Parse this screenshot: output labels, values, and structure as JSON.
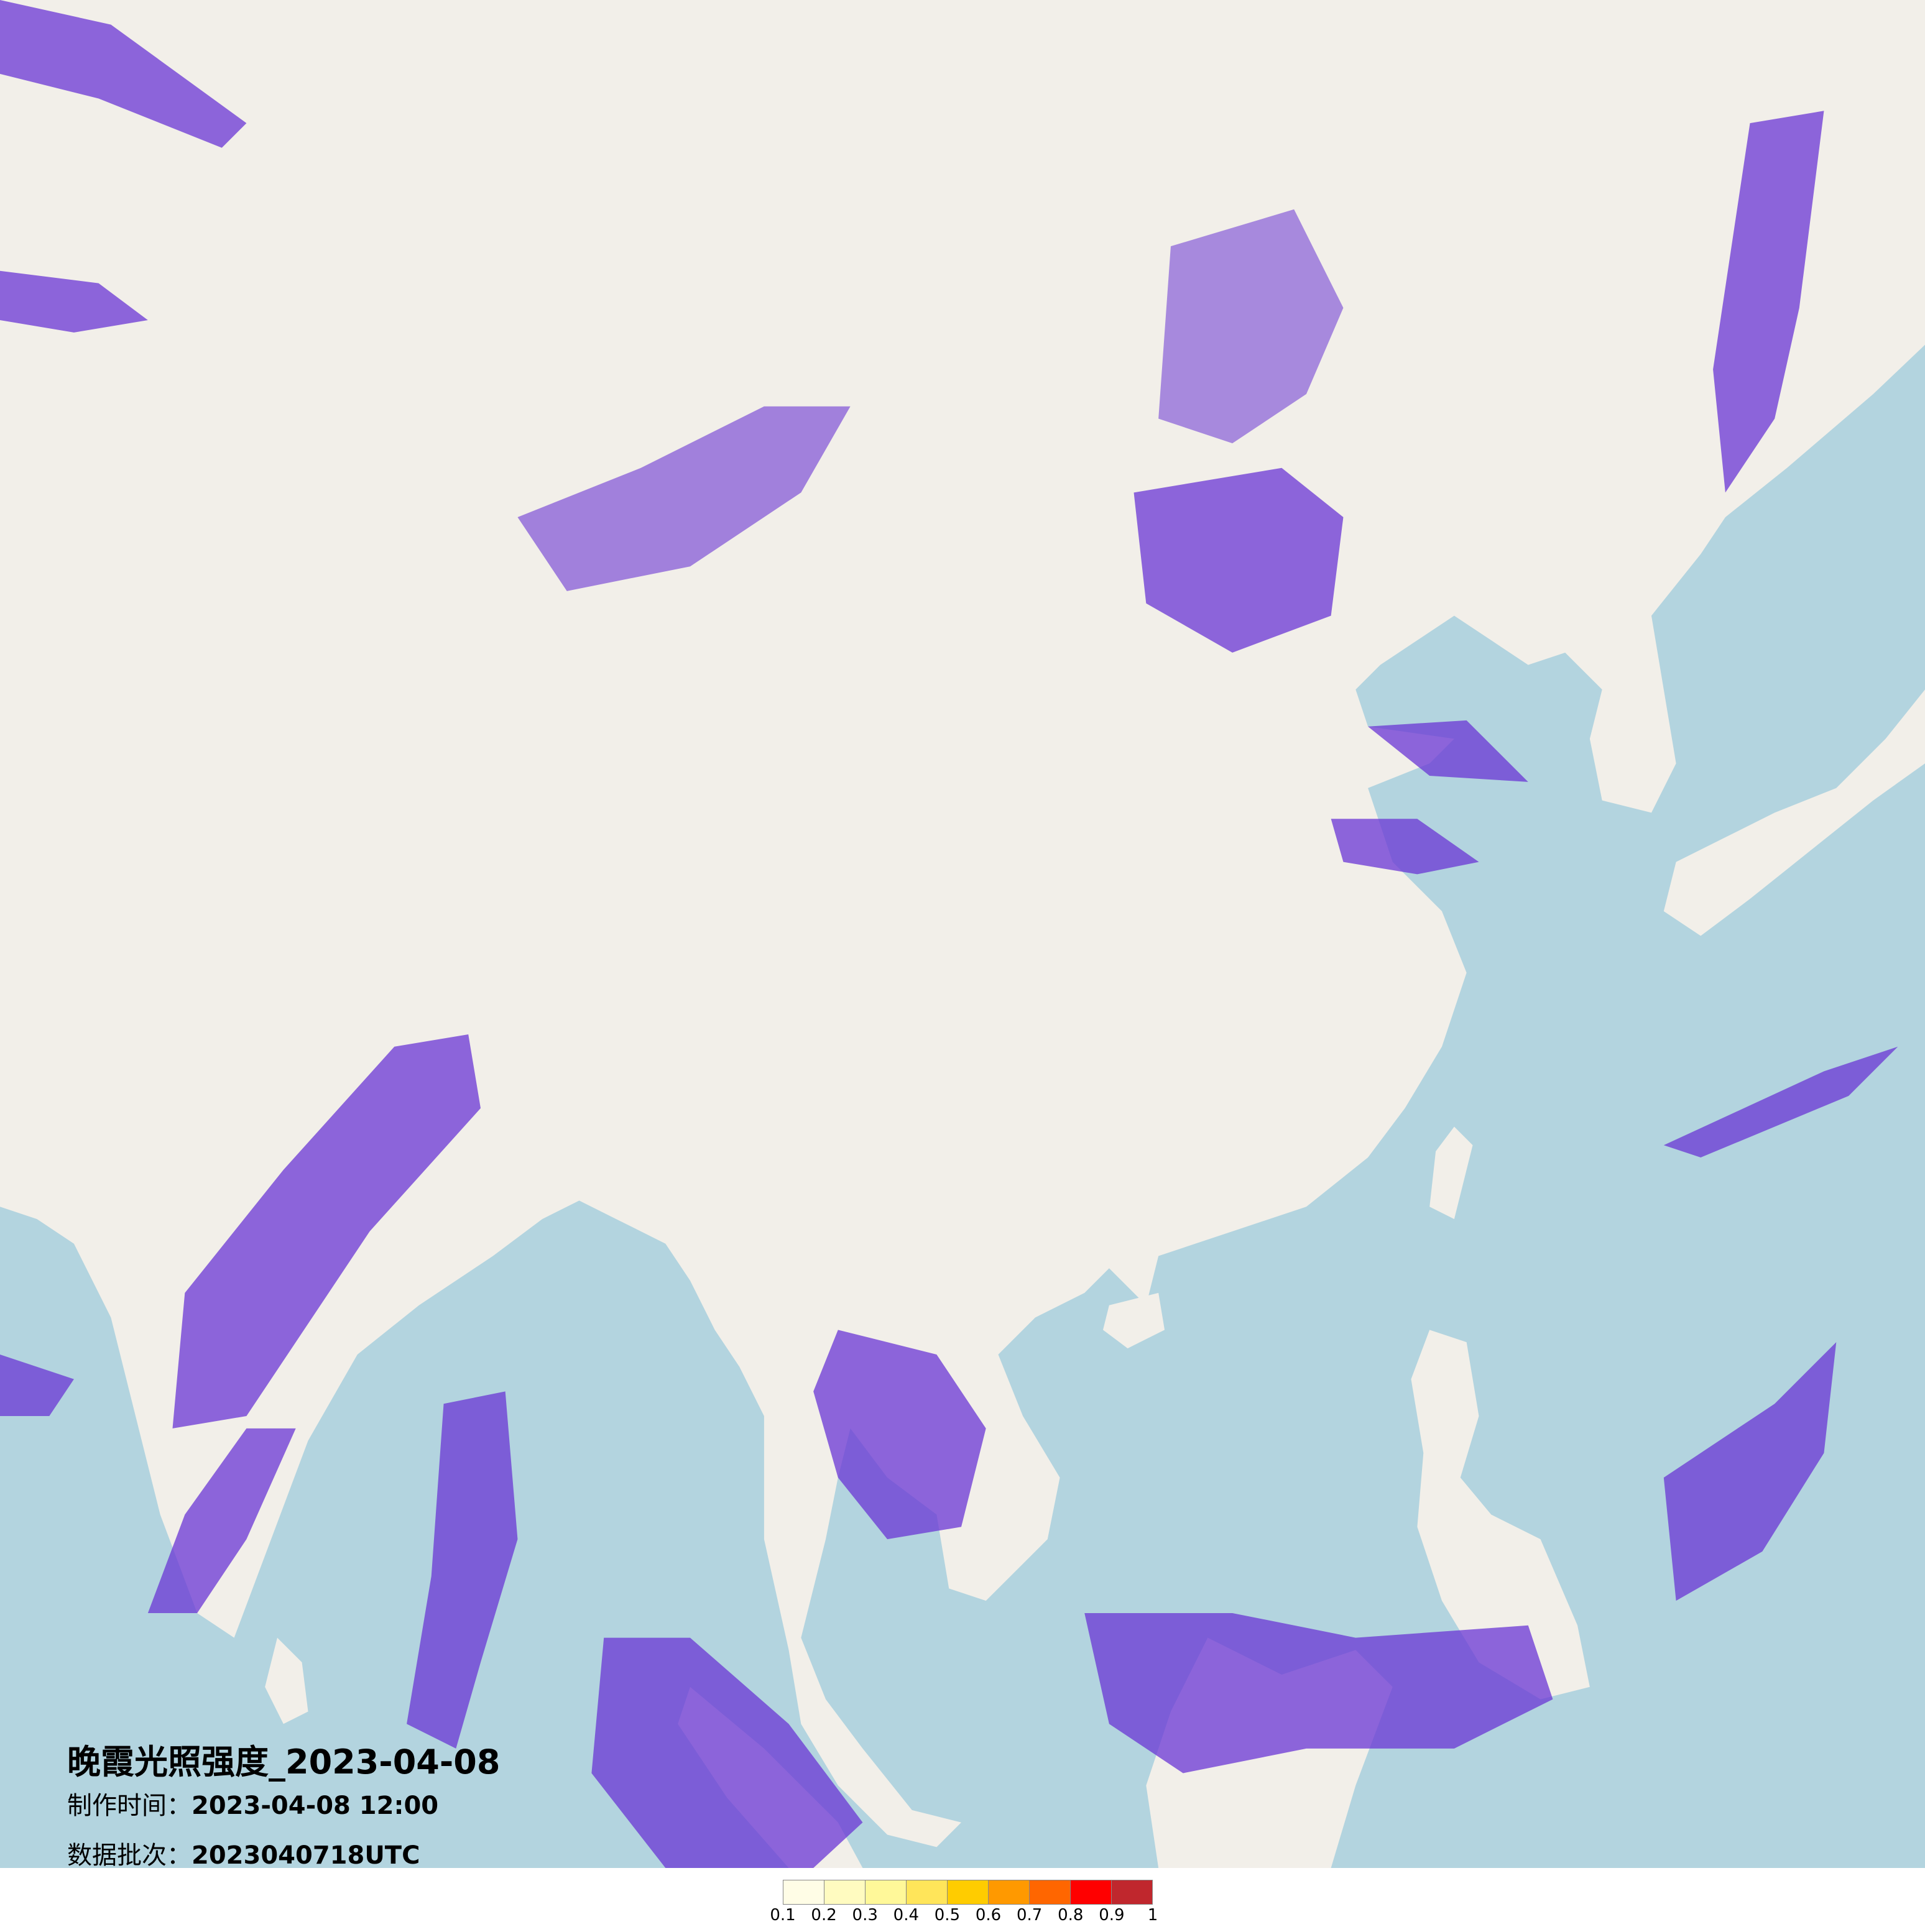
{
  "title": {
    "main": "晚霞光照强度_2023-04-08",
    "made_label": "制作时间：",
    "made_value": "2023-04-08 12:00",
    "batch_label": "数据批次：",
    "batch_value": "2023040718UTC"
  },
  "map": {
    "land_color": "#f2efe9",
    "sea_color": "#b3d4df",
    "overlay_color": "#6a35d4"
  },
  "legend": {
    "colors": [
      "#fffde6",
      "#fffbc0",
      "#fff899",
      "#ffe55a",
      "#ffcc00",
      "#ff9900",
      "#ff6600",
      "#ff0000",
      "#c0272d"
    ],
    "ticks": [
      "0.1",
      "0.2",
      "0.3",
      "0.4",
      "0.5",
      "0.6",
      "0.7",
      "0.8",
      "0.9",
      "1"
    ]
  }
}
